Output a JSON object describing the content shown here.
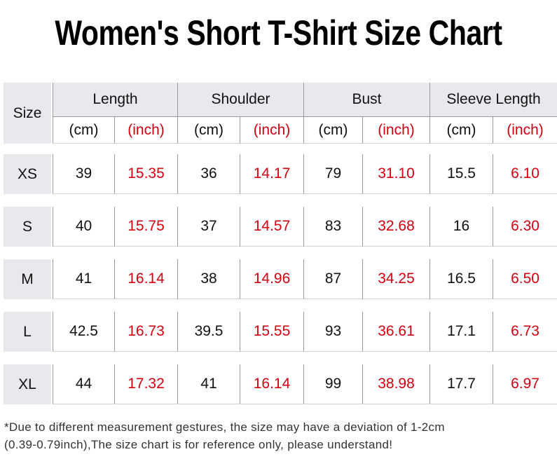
{
  "title": "Women's Short T-Shirt Size Chart",
  "table": {
    "size_header": "Size",
    "groups": [
      {
        "name": "Length",
        "units": [
          "(cm)",
          "(inch)"
        ]
      },
      {
        "name": "Shoulder",
        "units": [
          "(cm)",
          "(inch)"
        ]
      },
      {
        "name": "Bust",
        "units": [
          "(cm)",
          "(inch)"
        ]
      },
      {
        "name": "Sleeve Length",
        "units": [
          "(cm)",
          "(inch)"
        ]
      }
    ],
    "rows": [
      {
        "size": "XS",
        "values": [
          "39",
          "15.35",
          "36",
          "14.17",
          "79",
          "31.10",
          "15.5",
          "6.10"
        ]
      },
      {
        "size": "S",
        "values": [
          "40",
          "15.75",
          "37",
          "14.57",
          "83",
          "32.68",
          "16",
          "6.30"
        ]
      },
      {
        "size": "M",
        "values": [
          "41",
          "16.14",
          "38",
          "14.96",
          "87",
          "34.25",
          "16.5",
          "6.50"
        ]
      },
      {
        "size": "L",
        "values": [
          "42.5",
          "16.73",
          "39.5",
          "15.55",
          "93",
          "36.61",
          "17.1",
          "6.73"
        ]
      },
      {
        "size": "XL",
        "values": [
          "44",
          "17.32",
          "41",
          "16.14",
          "99",
          "38.98",
          "17.7",
          "6.97"
        ]
      }
    ]
  },
  "footnote": [
    "*Due to different measurement gestures, the size may have a deviation of 1-2cm",
    "(0.39-0.79inch),The size chart is for reference only, please understand!"
  ]
}
